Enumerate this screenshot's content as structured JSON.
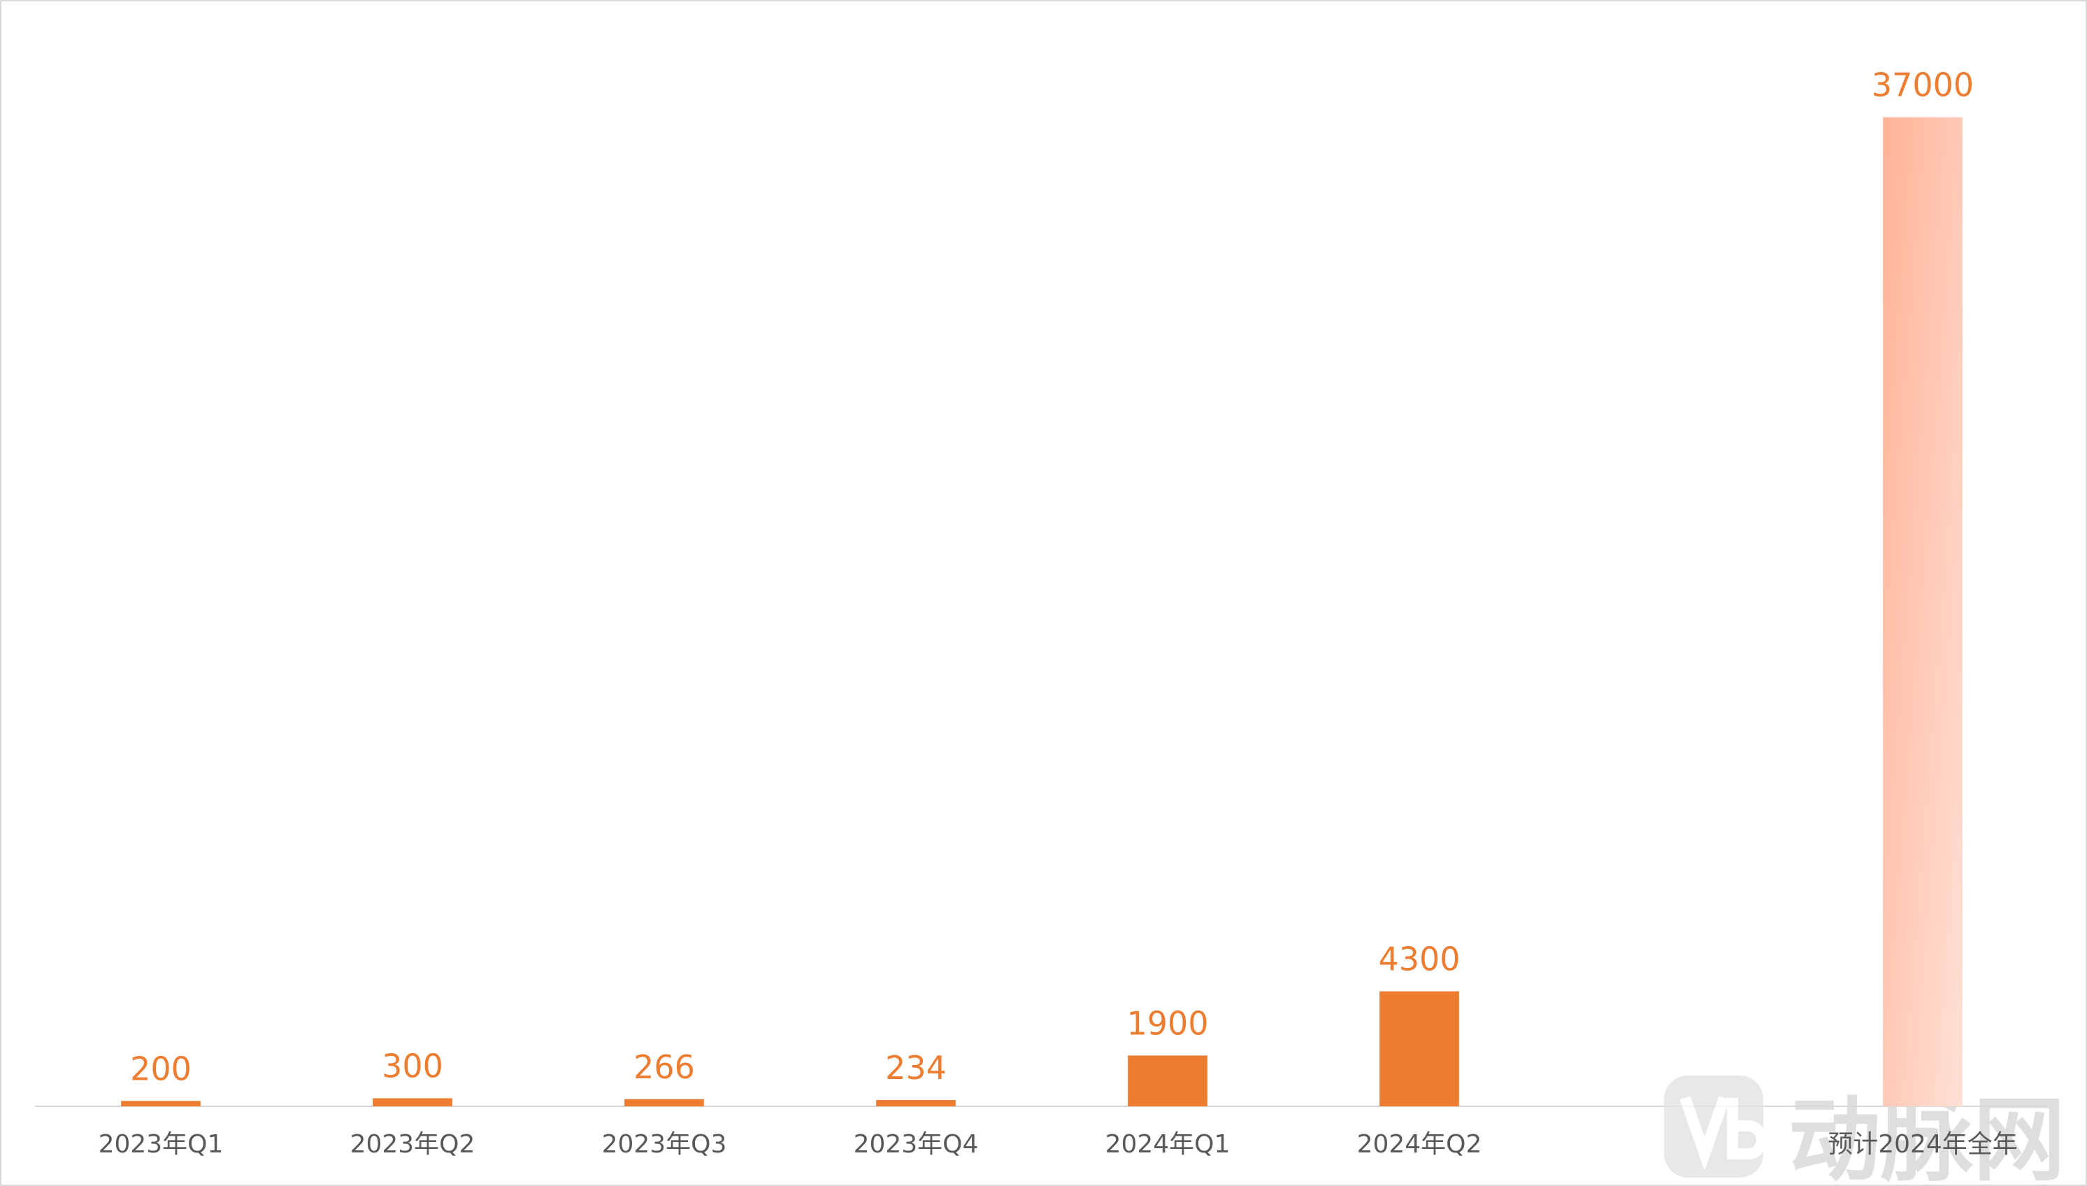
{
  "chart_data": {
    "type": "bar",
    "categories": [
      "2023年Q1",
      "2023年Q2",
      "2023年Q3",
      "2023年Q4",
      "2024年Q1",
      "2024年Q2",
      null,
      "预计2024年全年"
    ],
    "values": [
      200,
      300,
      266,
      234,
      1900,
      4300,
      null,
      37000
    ],
    "color": "#ED7D31",
    "forecast_color": [
      "#FFB396",
      "#FFE0D6"
    ],
    "ylim": [
      0,
      40000
    ]
  },
  "watermark": "动脉网"
}
